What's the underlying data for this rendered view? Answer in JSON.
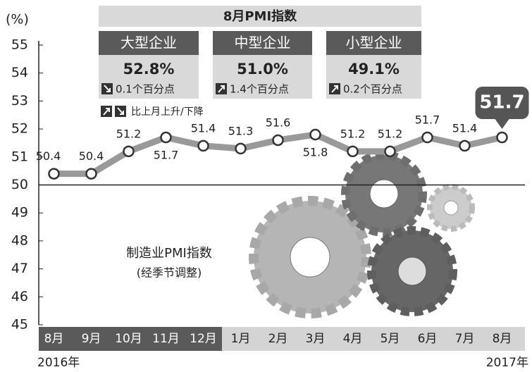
{
  "chart_data": {
    "type": "line",
    "y_unit": "(%)",
    "categories": [
      "8月",
      "9月",
      "10月",
      "11月",
      "12月",
      "1月",
      "2月",
      "3月",
      "4月",
      "5月",
      "6月",
      "7月",
      "8月"
    ],
    "x_years": [
      "2016年",
      "2017年"
    ],
    "series": [
      {
        "name": "制造业PMI指数",
        "color": "#999999",
        "values": [
          50.4,
          50.4,
          51.2,
          51.7,
          51.4,
          51.3,
          51.6,
          51.8,
          51.2,
          51.2,
          51.7,
          51.4,
          51.7
        ]
      }
    ],
    "annotation": "(经季节调整)",
    "ylim": [
      45,
      55
    ],
    "yticks": [
      45,
      46,
      47,
      48,
      49,
      50,
      51,
      52,
      53,
      54,
      55
    ],
    "baseline": 50,
    "grid": false,
    "inset": {
      "title": "8月PMI指数",
      "panels": [
        {
          "name": "大型企业",
          "value": "52.8%",
          "change": "0.1个百分点",
          "direction": "down"
        },
        {
          "name": "中型企业",
          "value": "51.0%",
          "change": "1.4个百分点",
          "direction": "up"
        },
        {
          "name": "小型企业",
          "value": "49.1%",
          "change": "0.2个百分点",
          "direction": "up"
        }
      ],
      "legend": "比上月上升/下降"
    }
  }
}
